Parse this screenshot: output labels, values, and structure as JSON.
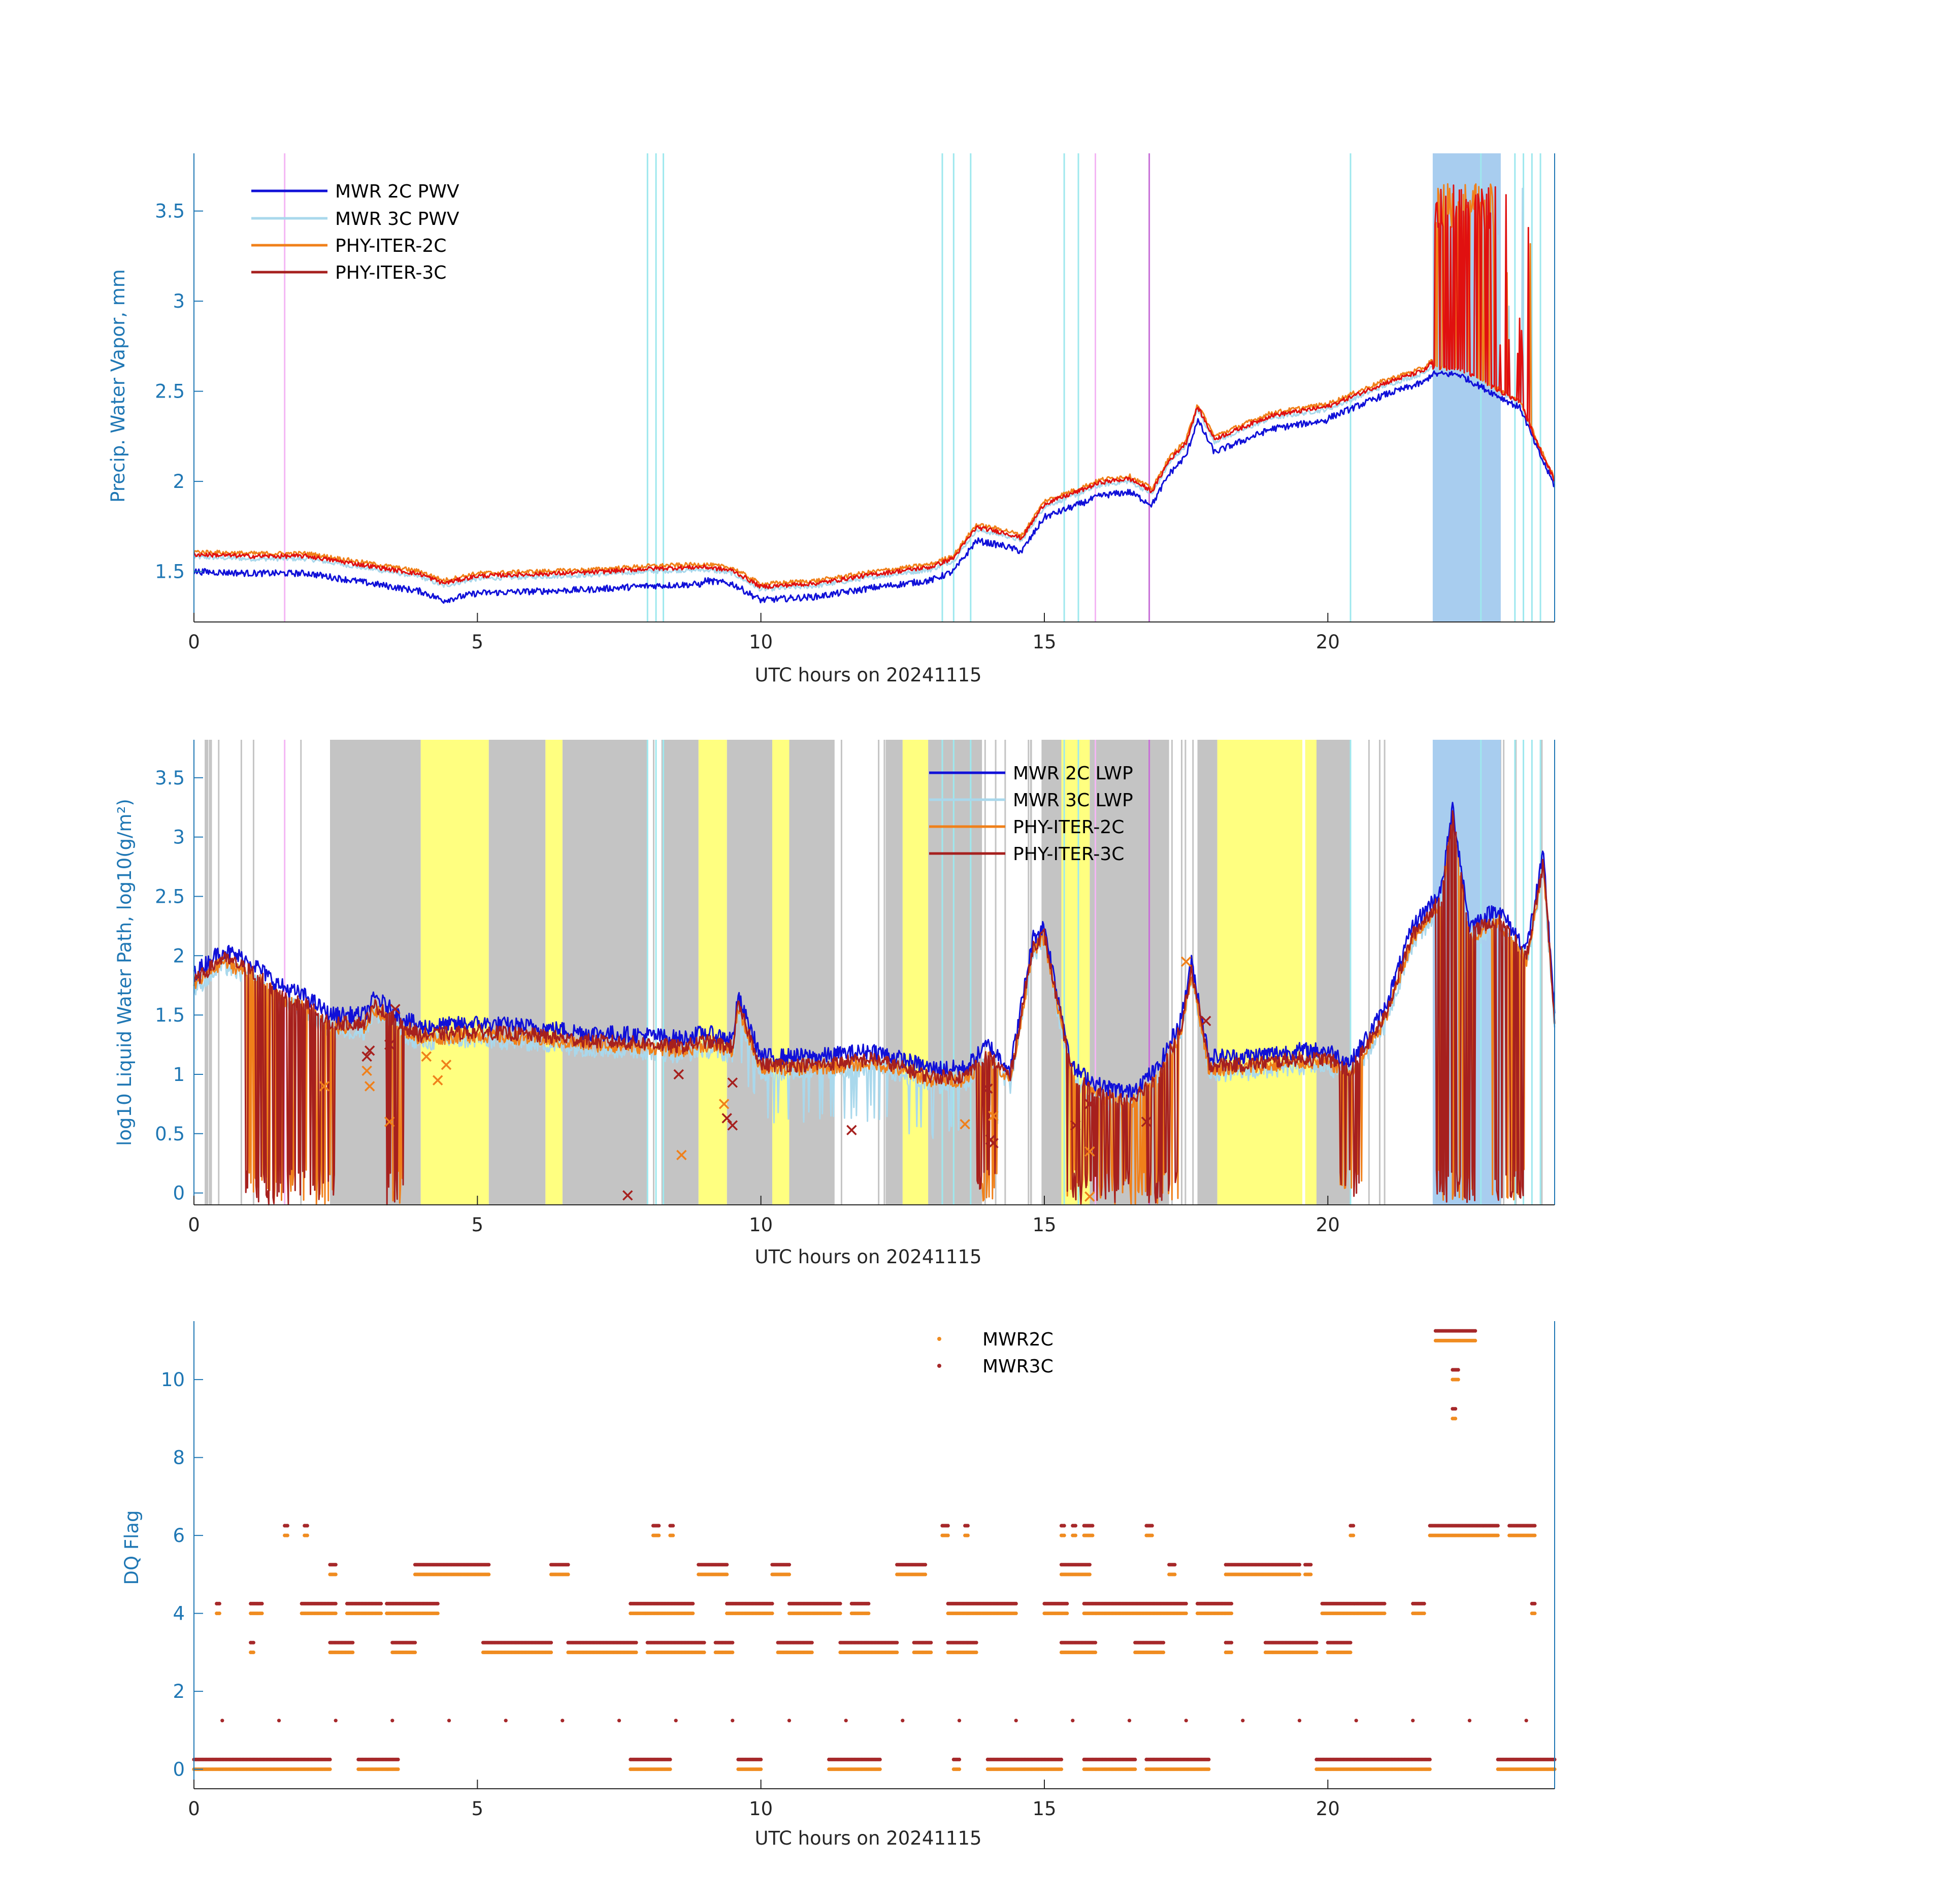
{
  "colors": {
    "mwr2c": "#1010d8",
    "mwr3c": "#a9d8ec",
    "phy2c": "#f0801a",
    "phy3c": "#a6201e",
    "phy3c_pwv": "#e01010",
    "axis": "#1f77b4",
    "cyan_marker": "#9ee8ee",
    "magenta_marker": "#f4b6f4",
    "purple_marker": "#c870d8",
    "flag_band": "#a8cdef",
    "gray_band": "#c4c4c4",
    "yellow_band": "#ffff80",
    "dq_2c": "#f08c20",
    "dq_3c": "#a6282a"
  },
  "chart_data": [
    {
      "type": "line",
      "id": "pwv",
      "ylabel": "Precip. Water Vapor, mm",
      "xlabel": "UTC hours on 20241115",
      "xlim": [
        0,
        24
      ],
      "ylim": [
        1.22,
        3.82
      ],
      "xticks": [
        0,
        5,
        10,
        15,
        20
      ],
      "yticks": [
        1.5,
        2,
        2.5,
        3,
        3.5
      ],
      "legend": "top-left",
      "legend_entries": [
        "MWR 2C PWV",
        "MWR 3C PWV",
        "PHY-ITER-2C",
        "PHY-ITER-3C"
      ],
      "grid": false,
      "baseline": {
        "x": [
          0,
          1,
          2,
          3,
          4,
          4.4,
          5,
          6,
          7,
          8,
          9,
          9.5,
          10,
          11,
          12,
          13,
          13.4,
          13.8,
          14.3,
          14.6,
          15,
          15.6,
          16,
          16.5,
          16.9,
          17.2,
          17.5,
          17.7,
          18,
          19,
          20,
          21,
          21.7,
          21.85
        ],
        "y": [
          1.58,
          1.57,
          1.57,
          1.52,
          1.47,
          1.42,
          1.46,
          1.47,
          1.48,
          1.5,
          1.51,
          1.49,
          1.4,
          1.42,
          1.47,
          1.51,
          1.56,
          1.73,
          1.7,
          1.67,
          1.86,
          1.93,
          1.98,
          2.0,
          1.93,
          2.1,
          2.2,
          2.4,
          2.22,
          2.35,
          2.4,
          2.53,
          2.6,
          2.65
        ]
      },
      "tail": {
        "x": [
          22.3,
          22.7,
          23.0,
          23.4,
          23.7,
          24.0
        ],
        "y": [
          2.62,
          2.55,
          2.5,
          2.43,
          2.2,
          2.0
        ]
      },
      "spike_region": {
        "x_start": 21.85,
        "x_end": 23.6,
        "peak": 3.65
      },
      "series_offsets": {
        "MWR 2C PWV": -0.05,
        "MWR 3C PWV": 0.0,
        "PHY-ITER-2C": 0.03,
        "PHY-ITER-3C": 0.015
      },
      "flag_band": [
        21.85,
        23.05
      ],
      "cyan_lines": [
        8.0,
        8.15,
        8.28,
        13.2,
        13.4,
        13.7,
        15.35,
        15.6,
        20.4,
        22.7,
        23.3,
        23.45,
        23.6,
        23.75
      ],
      "magenta_lines": [
        1.6,
        15.9,
        16.85
      ]
    },
    {
      "type": "line",
      "id": "lwp",
      "ylabel": "log10 Liquid Water Path, log10(g/m²)",
      "xlabel": "UTC hours on 20241115",
      "xlim": [
        0,
        24
      ],
      "ylim": [
        -0.1,
        3.82
      ],
      "xticks": [
        0,
        5,
        10,
        15,
        20
      ],
      "yticks": [
        0,
        0.5,
        1,
        1.5,
        2,
        2.5,
        3,
        3.5
      ],
      "legend": "top-right",
      "legend_entries": [
        "MWR 2C LWP",
        "MWR 3C LWP",
        "PHY-ITER-2C",
        "PHY-ITER-3C"
      ],
      "grid": false,
      "baseline": {
        "x": [
          0,
          0.5,
          1,
          1.5,
          2,
          2.4,
          3,
          3.2,
          3.6,
          4,
          5,
          6,
          7,
          8,
          8.6,
          9,
          9.5,
          9.6,
          10,
          11,
          12,
          13,
          13.6,
          14,
          14.4,
          14.8,
          15,
          15.2,
          15.5,
          16,
          16.5,
          17,
          17.4,
          17.6,
          17.9,
          18.5,
          19.5,
          20,
          20.4,
          21,
          21.5,
          22,
          22.2,
          22.5,
          23,
          23.5,
          23.8,
          24
        ],
        "y": [
          1.8,
          2.0,
          1.9,
          1.7,
          1.6,
          1.45,
          1.45,
          1.6,
          1.45,
          1.35,
          1.38,
          1.35,
          1.3,
          1.28,
          1.25,
          1.3,
          1.25,
          1.6,
          1.1,
          1.1,
          1.15,
          1.0,
          1.0,
          1.2,
          1.0,
          2.1,
          2.2,
          1.7,
          1.0,
          0.85,
          0.8,
          1.0,
          1.4,
          1.9,
          1.1,
          1.1,
          1.15,
          1.15,
          1.05,
          1.5,
          2.2,
          2.5,
          3.2,
          2.2,
          2.35,
          2.0,
          2.8,
          1.5
        ]
      },
      "cross_markers": [
        {
          "x": 2.3,
          "y": 0.9,
          "series": "PHY-ITER-2C"
        },
        {
          "x": 3.05,
          "y": 1.15,
          "series": "PHY-ITER-3C"
        },
        {
          "x": 3.1,
          "y": 1.2,
          "series": "PHY-ITER-3C"
        },
        {
          "x": 3.05,
          "y": 1.03,
          "series": "PHY-ITER-2C"
        },
        {
          "x": 3.1,
          "y": 0.9,
          "series": "PHY-ITER-2C"
        },
        {
          "x": 3.45,
          "y": 1.25,
          "series": "PHY-ITER-3C"
        },
        {
          "x": 3.55,
          "y": 1.55,
          "series": "PHY-ITER-3C"
        },
        {
          "x": 3.45,
          "y": 0.6,
          "series": "PHY-ITER-2C"
        },
        {
          "x": 4.1,
          "y": 1.15,
          "series": "PHY-ITER-2C"
        },
        {
          "x": 4.3,
          "y": 0.95,
          "series": "PHY-ITER-2C"
        },
        {
          "x": 4.45,
          "y": 1.08,
          "series": "PHY-ITER-2C"
        },
        {
          "x": 7.65,
          "y": -0.02,
          "series": "PHY-ITER-3C"
        },
        {
          "x": 8.55,
          "y": 1.0,
          "series": "PHY-ITER-3C"
        },
        {
          "x": 8.6,
          "y": 0.32,
          "series": "PHY-ITER-2C"
        },
        {
          "x": 9.35,
          "y": 0.75,
          "series": "PHY-ITER-2C"
        },
        {
          "x": 9.4,
          "y": 0.63,
          "series": "PHY-ITER-3C"
        },
        {
          "x": 9.5,
          "y": 0.93,
          "series": "PHY-ITER-3C"
        },
        {
          "x": 9.5,
          "y": 0.57,
          "series": "PHY-ITER-3C"
        },
        {
          "x": 11.6,
          "y": 0.53,
          "series": "PHY-ITER-3C"
        },
        {
          "x": 13.6,
          "y": 0.58,
          "series": "PHY-ITER-2C"
        },
        {
          "x": 14.0,
          "y": 0.88,
          "series": "PHY-ITER-3C"
        },
        {
          "x": 14.1,
          "y": 0.65,
          "series": "PHY-ITER-2C"
        },
        {
          "x": 14.05,
          "y": 0.45,
          "series": "PHY-ITER-3C"
        },
        {
          "x": 14.1,
          "y": 0.42,
          "series": "PHY-ITER-3C"
        },
        {
          "x": 15.55,
          "y": 0.57,
          "series": "PHY-ITER-3C"
        },
        {
          "x": 15.8,
          "y": 0.75,
          "series": "PHY-ITER-3C"
        },
        {
          "x": 15.8,
          "y": 0.35,
          "series": "PHY-ITER-2C"
        },
        {
          "x": 15.8,
          "y": -0.03,
          "series": "PHY-ITER-2C"
        },
        {
          "x": 16.8,
          "y": 0.6,
          "series": "PHY-ITER-3C"
        },
        {
          "x": 17.5,
          "y": 1.95,
          "series": "PHY-ITER-2C"
        },
        {
          "x": 17.85,
          "y": 1.45,
          "series": "PHY-ITER-3C"
        }
      ],
      "yellow_bands": [
        [
          4.0,
          5.2
        ],
        [
          6.2,
          6.5
        ],
        [
          8.9,
          9.4
        ],
        [
          10.2,
          10.5
        ],
        [
          12.5,
          12.95
        ],
        [
          15.3,
          15.8
        ],
        [
          18.05,
          19.55
        ],
        [
          19.6,
          19.8
        ]
      ],
      "gray_bands": [
        [
          2.4,
          4.0
        ],
        [
          5.2,
          6.2
        ],
        [
          6.5,
          8.0
        ],
        [
          8.3,
          8.9
        ],
        [
          9.4,
          10.2
        ],
        [
          10.5,
          11.3
        ],
        [
          12.2,
          12.5
        ],
        [
          12.95,
          13.9
        ],
        [
          14.95,
          15.3
        ],
        [
          15.8,
          17.2
        ],
        [
          17.7,
          18.05
        ],
        [
          19.8,
          20.4
        ]
      ],
      "flag_band": [
        21.85,
        23.05
      ],
      "cyan_lines": [
        8.0,
        8.15,
        8.28,
        13.2,
        13.4,
        13.7,
        15.35,
        15.6,
        20.4,
        22.7,
        23.3,
        23.45,
        23.6,
        23.75
      ],
      "magenta_lines": [
        1.6,
        15.9,
        16.85
      ]
    },
    {
      "type": "scatter",
      "id": "dq",
      "ylabel": "DQ Flag",
      "xlabel": "UTC hours on 20241115",
      "xlim": [
        0,
        24
      ],
      "ylim": [
        -0.5,
        11.5
      ],
      "xticks": [
        0,
        5,
        10,
        15,
        20
      ],
      "yticks": [
        0,
        2,
        4,
        6,
        8,
        10
      ],
      "legend": "top-center",
      "legend_entries": [
        "MWR2C",
        "MWR3C"
      ],
      "grid": false,
      "segments": [
        {
          "y": 0,
          "ranges": [
            [
              0,
              2.4
            ],
            [
              2.9,
              3.6
            ],
            [
              7.7,
              8.4
            ],
            [
              9.6,
              10.0
            ],
            [
              11.2,
              12.1
            ],
            [
              13.4,
              13.5
            ],
            [
              14.0,
              15.3
            ],
            [
              15.7,
              16.6
            ],
            [
              16.8,
              17.9
            ],
            [
              19.8,
              21.8
            ],
            [
              23.0,
              24.0
            ]
          ]
        },
        {
          "y": 3,
          "ranges": [
            [
              1.0,
              1.05
            ],
            [
              2.4,
              2.8
            ],
            [
              3.5,
              3.9
            ],
            [
              5.1,
              6.3
            ],
            [
              6.6,
              7.8
            ],
            [
              8.0,
              9.0
            ],
            [
              9.2,
              9.5
            ],
            [
              10.3,
              10.9
            ],
            [
              11.4,
              12.4
            ],
            [
              12.7,
              13.0
            ],
            [
              13.3,
              13.8
            ],
            [
              15.3,
              15.9
            ],
            [
              16.6,
              17.1
            ],
            [
              18.2,
              18.3
            ],
            [
              18.9,
              19.8
            ],
            [
              20.0,
              20.4
            ]
          ]
        },
        {
          "y": 4,
          "ranges": [
            [
              0.4,
              0.45
            ],
            [
              1.0,
              1.2
            ],
            [
              1.9,
              2.5
            ],
            [
              2.7,
              3.3
            ],
            [
              3.4,
              4.3
            ],
            [
              7.7,
              8.8
            ],
            [
              9.4,
              10.2
            ],
            [
              10.5,
              11.4
            ],
            [
              11.6,
              11.9
            ],
            [
              13.3,
              14.5
            ],
            [
              15.0,
              15.4
            ],
            [
              15.7,
              17.5
            ],
            [
              17.7,
              18.3
            ],
            [
              19.9,
              21.0
            ],
            [
              21.5,
              21.7
            ],
            [
              23.6,
              23.65
            ]
          ]
        },
        {
          "y": 5,
          "ranges": [
            [
              2.4,
              2.5
            ],
            [
              3.9,
              5.2
            ],
            [
              6.3,
              6.6
            ],
            [
              8.9,
              9.4
            ],
            [
              10.2,
              10.5
            ],
            [
              12.4,
              12.9
            ],
            [
              15.3,
              15.8
            ],
            [
              17.2,
              17.3
            ],
            [
              18.2,
              19.5
            ],
            [
              19.6,
              19.7
            ]
          ]
        },
        {
          "y": 6,
          "ranges": [
            [
              1.6,
              1.65
            ],
            [
              1.95,
              2.0
            ],
            [
              8.1,
              8.2
            ],
            [
              8.4,
              8.45
            ],
            [
              13.2,
              13.3
            ],
            [
              13.6,
              13.65
            ],
            [
              15.3,
              15.35
            ],
            [
              15.5,
              15.55
            ],
            [
              15.7,
              15.85
            ],
            [
              16.8,
              16.9
            ],
            [
              20.4,
              20.45
            ],
            [
              21.8,
              23.0
            ],
            [
              23.2,
              23.65
            ]
          ]
        },
        {
          "y": 9,
          "ranges": [
            [
              22.2,
              22.25
            ]
          ]
        },
        {
          "y": 10,
          "ranges": [
            [
              22.2,
              22.3
            ]
          ]
        },
        {
          "y": 11,
          "ranges": [
            [
              21.9,
              22.6
            ]
          ]
        }
      ],
      "sparse_y1": [
        0.5,
        1.5,
        2.5,
        3.5,
        4.5,
        5.5,
        6.5,
        7.5,
        8.5,
        9.5,
        10.5,
        11.5,
        12.5,
        13.5,
        14.5,
        15.5,
        16.5,
        17.5,
        18.5,
        19.5,
        20.5,
        21.5,
        22.5,
        23.5
      ]
    }
  ]
}
